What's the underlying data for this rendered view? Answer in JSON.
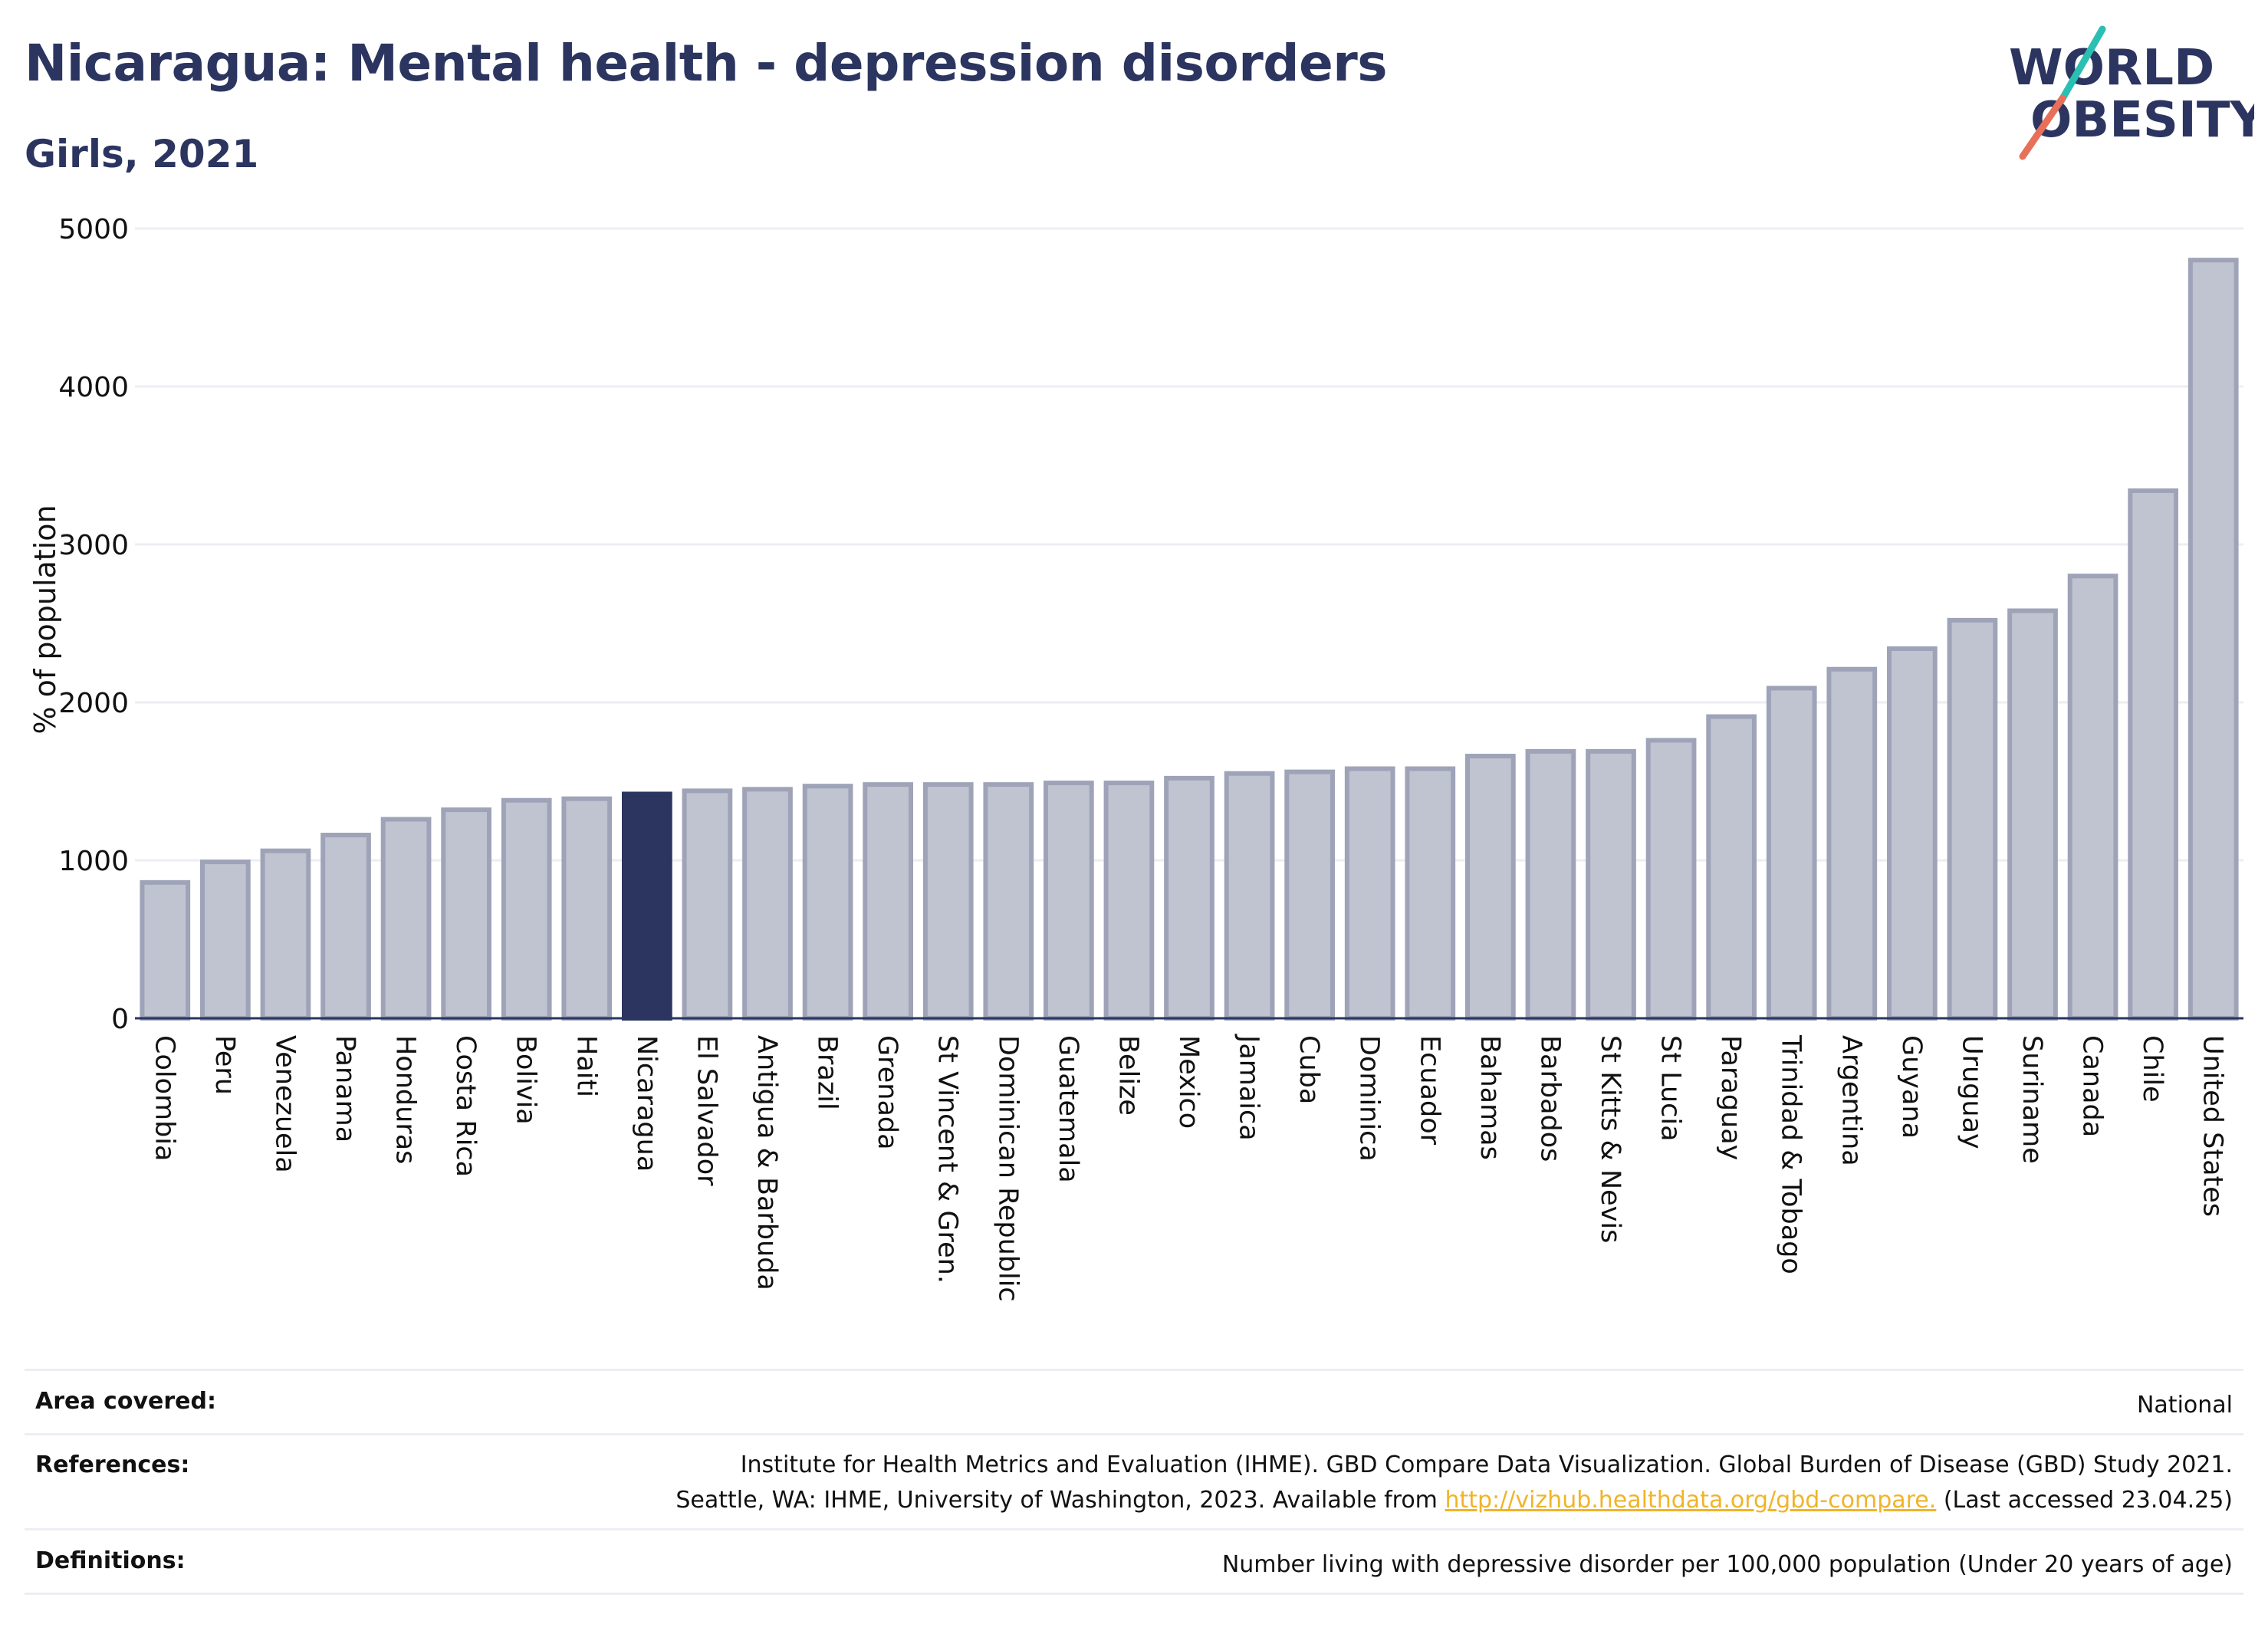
{
  "header": {
    "title": "Nicaragua: Mental health - depression disorders",
    "subtitle": "Girls, 2021"
  },
  "logo": {
    "line1": "WORLD",
    "line2": "OBESITY"
  },
  "colors": {
    "highlight": "#2b3560",
    "bar_fill": "#c0c3d0",
    "bar_stroke": "#9ea3b8",
    "grid": "#eceef4",
    "link": "#f0b429"
  },
  "chart_data": {
    "type": "bar",
    "title": "Nicaragua: Mental health - depression disorders",
    "subtitle": "Girls, 2021",
    "ylabel": "% of population",
    "xlabel": "",
    "ylim": [
      0,
      5000
    ],
    "yticks": [
      0,
      1000,
      2000,
      3000,
      4000,
      5000
    ],
    "grid": true,
    "highlight": "Nicaragua",
    "categories": [
      "Colombia",
      "Peru",
      "Venezuela",
      "Panama",
      "Honduras",
      "Costa Rica",
      "Bolivia",
      "Haiti",
      "Nicaragua",
      "El Salvador",
      "Antigua & Barbuda",
      "Brazil",
      "Grenada",
      "St Vincent & Gren.",
      "Dominican Republic",
      "Guatemala",
      "Belize",
      "Mexico",
      "Jamaica",
      "Cuba",
      "Dominica",
      "Ecuador",
      "Bahamas",
      "Barbados",
      "St Kitts & Nevis",
      "St Lucia",
      "Paraguay",
      "Trinidad & Tobago",
      "Argentina",
      "Guyana",
      "Uruguay",
      "Suriname",
      "Canada",
      "Chile",
      "United States"
    ],
    "values": [
      860,
      990,
      1060,
      1160,
      1260,
      1320,
      1380,
      1390,
      1420,
      1440,
      1450,
      1470,
      1480,
      1480,
      1480,
      1490,
      1490,
      1520,
      1550,
      1560,
      1580,
      1580,
      1660,
      1690,
      1690,
      1760,
      1910,
      2090,
      2210,
      2340,
      2520,
      2580,
      2800,
      3340,
      4800
    ]
  },
  "footer": {
    "area_label": "Area covered:",
    "area_value": "National",
    "references_label": "References:",
    "references_line1": "Institute for Health Metrics and Evaluation (IHME). GBD Compare Data Visualization. Global Burden of Disease (GBD) Study 2021.",
    "references_line2_pre": "Seattle, WA: IHME, University of Washington, 2023. Available from ",
    "references_link": "http://vizhub.healthdata.org/gbd-compare.",
    "references_line2_post": " (Last accessed 23.04.25)",
    "definitions_label": "Definitions:",
    "definitions_value": "Number living with depressive disorder per 100,000 population (Under 20 years of age)"
  }
}
